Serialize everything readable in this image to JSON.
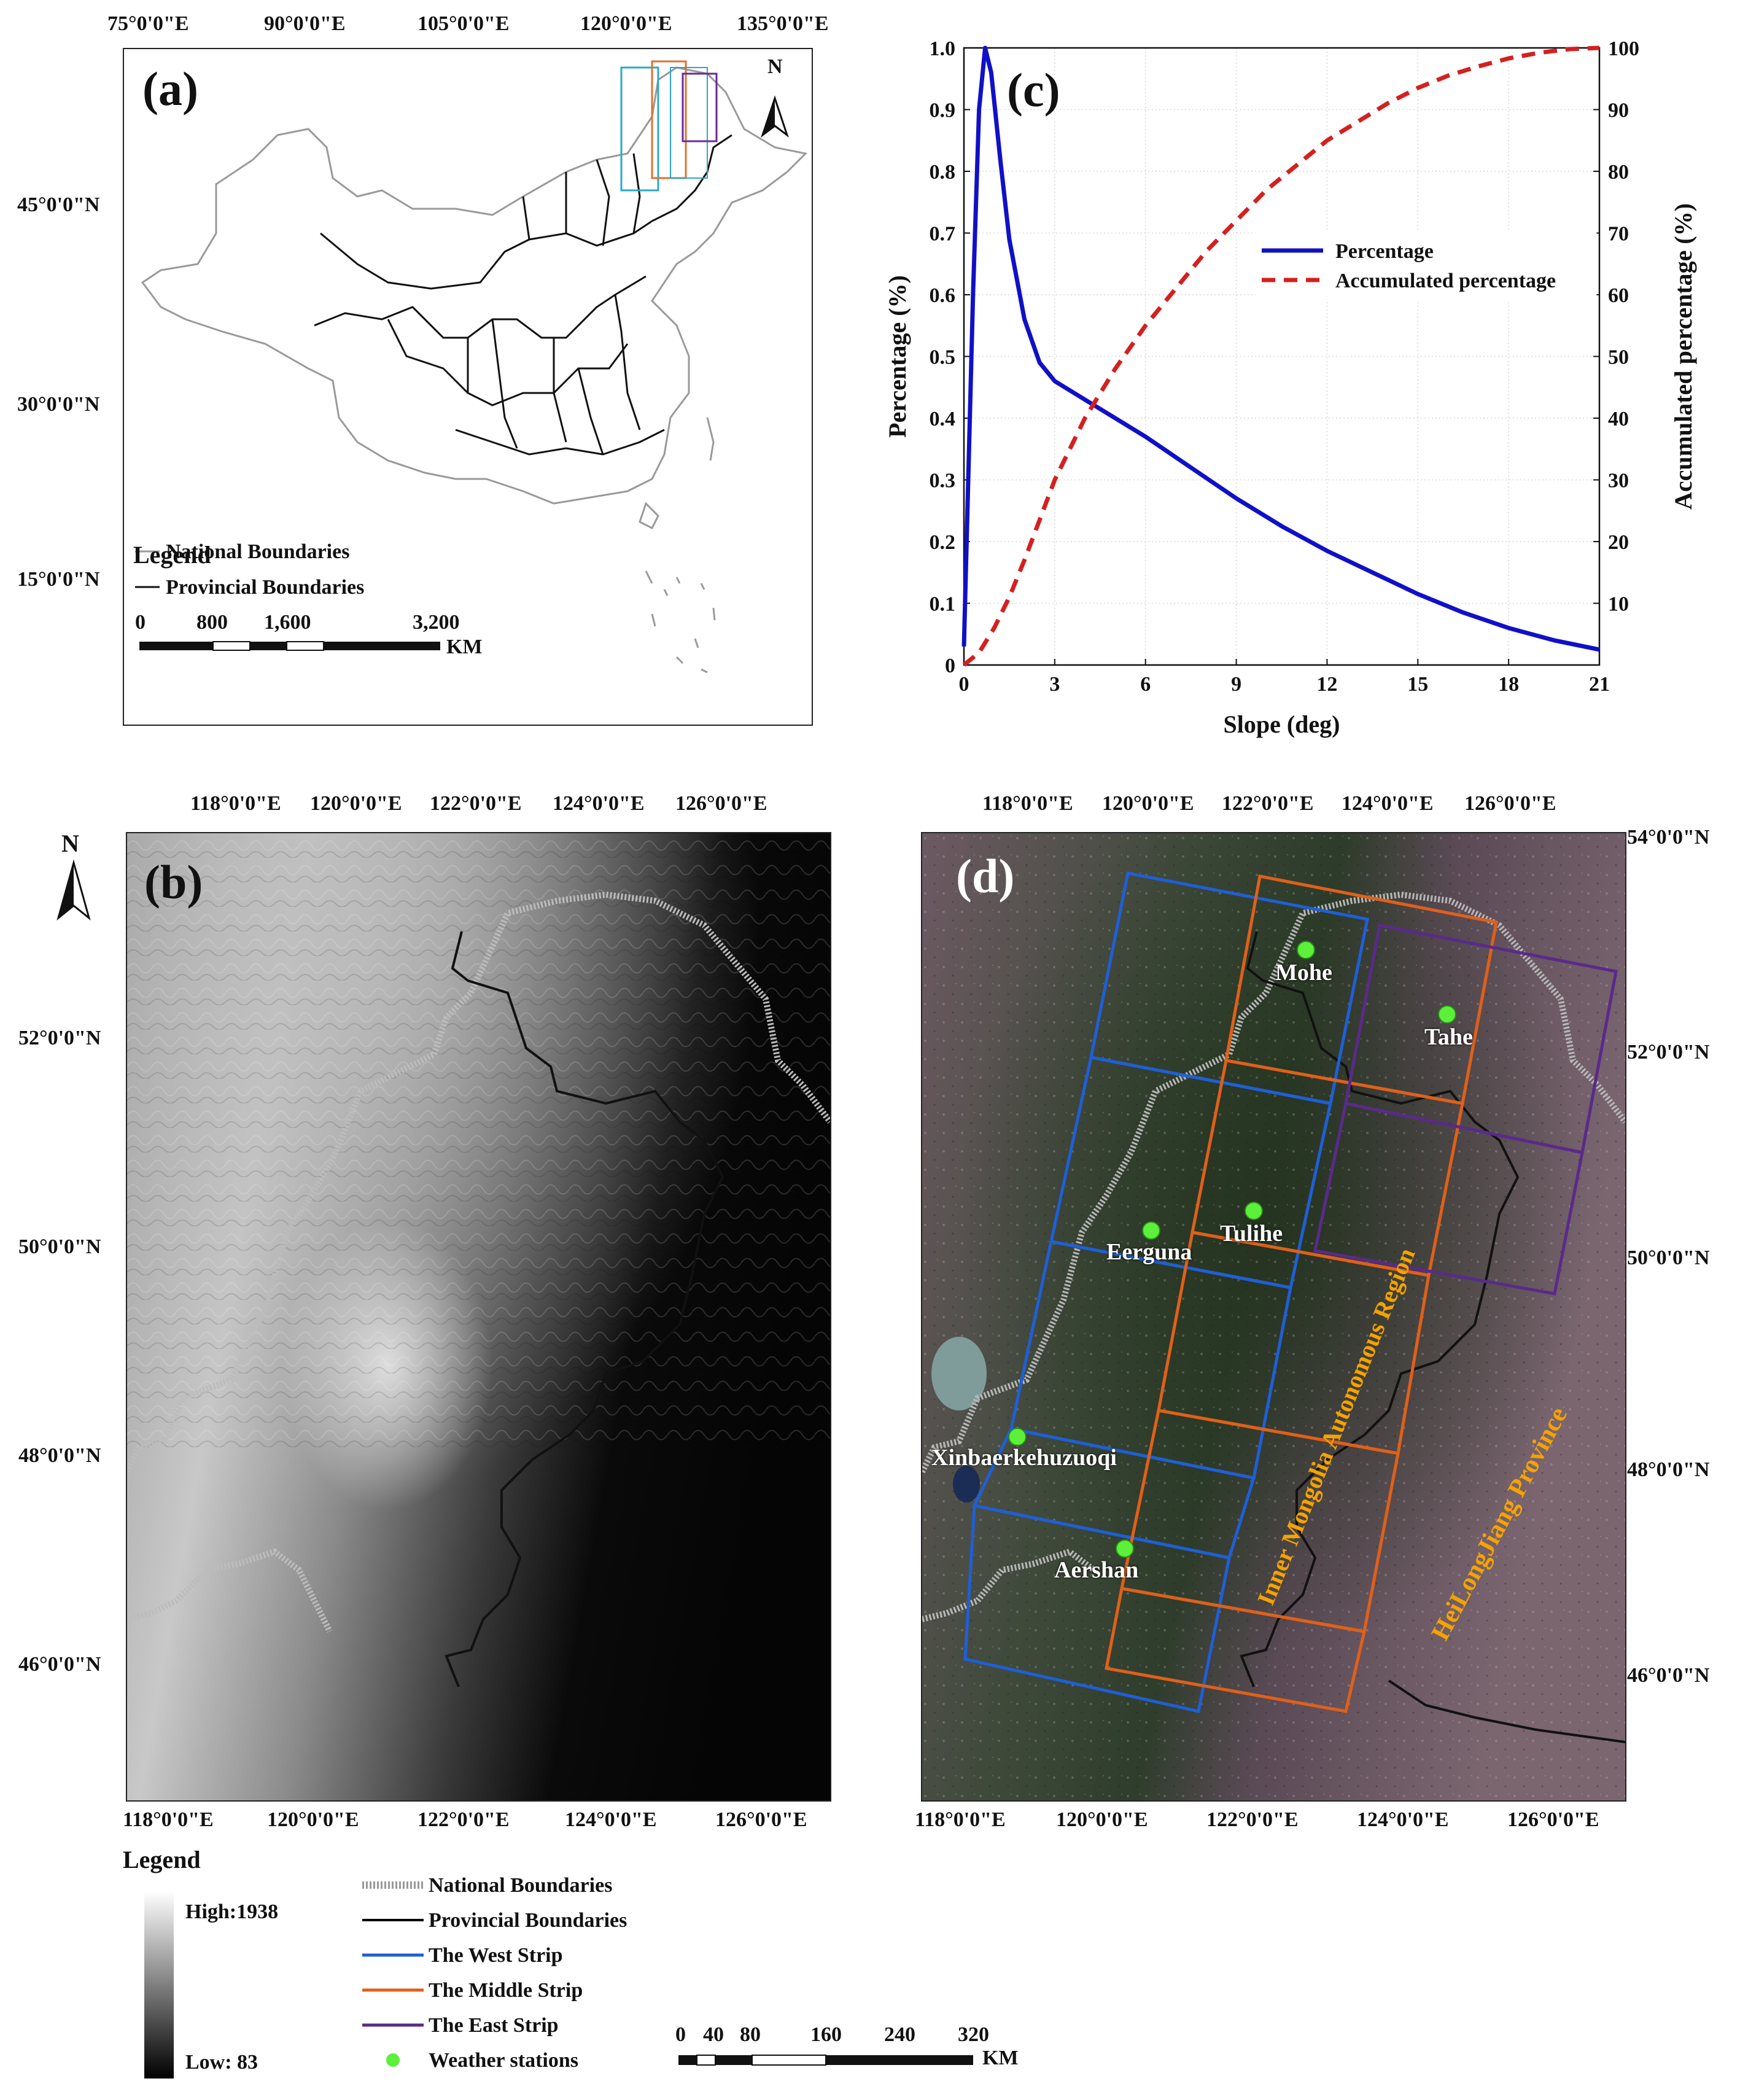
{
  "panel_a": {
    "label": "(a)",
    "top_ticks": [
      "75°0'0\"E",
      "90°0'0\"E",
      "105°0'0\"E",
      "120°0'0\"E",
      "135°0'0\"E"
    ],
    "left_ticks": [
      "45°0'0\"N",
      "30°0'0\"N",
      "15°0'0\"N"
    ],
    "north": "N",
    "legend_title": "Legend",
    "legend_national": "National Boundaries",
    "legend_provincial": "Provincial Boundaries",
    "scale_labels": [
      "0",
      "800",
      "1,600",
      "3,200"
    ],
    "scale_unit": "KM"
  },
  "panel_b": {
    "label": "(b)",
    "top_ticks": [
      "118°0'0\"E",
      "120°0'0\"E",
      "122°0'0\"E",
      "124°0'0\"E",
      "126°0'0\"E"
    ],
    "bottom_ticks": [
      "118°0'0\"E",
      "120°0'0\"E",
      "122°0'0\"E",
      "124°0'0\"E",
      "126°0'0\"E"
    ],
    "left_ticks": [
      "52°0'0\"N",
      "50°0'0\"N",
      "48°0'0\"N",
      "46°0'0\"N"
    ],
    "north": "N"
  },
  "panel_d": {
    "label": "(d)",
    "top_ticks": [
      "118°0'0\"E",
      "120°0'0\"E",
      "122°0'0\"E",
      "124°0'0\"E",
      "126°0'0\"E"
    ],
    "bottom_ticks": [
      "118°0'0\"E",
      "120°0'0\"E",
      "122°0'0\"E",
      "124°0'0\"E",
      "126°0'0\"E"
    ],
    "right_ticks": [
      "54°0'0\"N",
      "52°0'0\"N",
      "50°0'0\"N",
      "48°0'0\"N",
      "46°0'0\"N"
    ],
    "stations": [
      "Mohe",
      "Tahe",
      "Tulihe",
      "Eerguna",
      "Xinbaerkehuzuoqi",
      "Aershan"
    ],
    "region_inner_mongolia": "Inner Mongolia Autonomous Region",
    "region_heilongjiang": "HeiLongJiang Province"
  },
  "legend_bottom": {
    "title": "Legend",
    "high": "High:1938",
    "low": "Low: 83",
    "items": [
      {
        "label": "National Boundaries",
        "color": "#999999"
      },
      {
        "label": "Provincial Boundaries",
        "color": "#000000"
      },
      {
        "label": "The West Strip",
        "color": "#1f5fd6"
      },
      {
        "label": "The Middle Strip",
        "color": "#e0601a"
      },
      {
        "label": "The East Strip",
        "color": "#5a2a8a"
      },
      {
        "label": "Weather stations",
        "color": "#5cf03a"
      }
    ],
    "scale_labels": [
      "0",
      "40",
      "80",
      "160",
      "240",
      "320"
    ],
    "scale_unit": "KM"
  },
  "chart_data": {
    "type": "line",
    "panel_label": "(c)",
    "xlabel": "Slope (deg)",
    "ylabel": "Percentage (%)",
    "y2label": "Accumulated percentage (%)",
    "xlim": [
      0,
      21
    ],
    "ylim": [
      0,
      1.0
    ],
    "y2lim": [
      0,
      100
    ],
    "xticks": [
      "0",
      "3",
      "6",
      "9",
      "12",
      "15",
      "18",
      "21"
    ],
    "yticks": [
      "0",
      "0.1",
      "0.2",
      "0.3",
      "0.4",
      "0.5",
      "0.6",
      "0.7",
      "0.8",
      "0.9",
      "1.0"
    ],
    "y2ticks": [
      "10",
      "20",
      "30",
      "40",
      "50",
      "60",
      "70",
      "80",
      "90",
      "100"
    ],
    "grid": true,
    "legend_position": "upper-right",
    "series": [
      {
        "name": "Percentage",
        "color": "#1010c8",
        "style": "solid",
        "axis": "left",
        "x": [
          0,
          0.3,
          0.5,
          0.7,
          0.9,
          1.2,
          1.5,
          2.0,
          2.5,
          3.0,
          4.0,
          5.0,
          6.0,
          7.5,
          9.0,
          10.5,
          12,
          13.5,
          15,
          16.5,
          18,
          19.5,
          21
        ],
        "y": [
          0.03,
          0.6,
          0.9,
          1.0,
          0.96,
          0.82,
          0.69,
          0.56,
          0.49,
          0.46,
          0.43,
          0.4,
          0.37,
          0.32,
          0.27,
          0.225,
          0.185,
          0.15,
          0.115,
          0.085,
          0.06,
          0.04,
          0.025
        ]
      },
      {
        "name": "Accumulated percentage",
        "color": "#d42020",
        "style": "dashed",
        "axis": "right",
        "x": [
          0,
          0.5,
          1,
          1.5,
          2,
          3,
          4,
          5,
          6,
          7,
          8,
          9,
          10,
          11,
          12,
          13,
          14,
          15,
          16,
          17,
          18,
          19,
          20,
          21
        ],
        "y": [
          0,
          2,
          6,
          11,
          17,
          30,
          40,
          48,
          55,
          61,
          67,
          72,
          77,
          81,
          85,
          88,
          91,
          93.5,
          95.5,
          97,
          98.3,
          99.2,
          99.8,
          100
        ]
      }
    ]
  }
}
